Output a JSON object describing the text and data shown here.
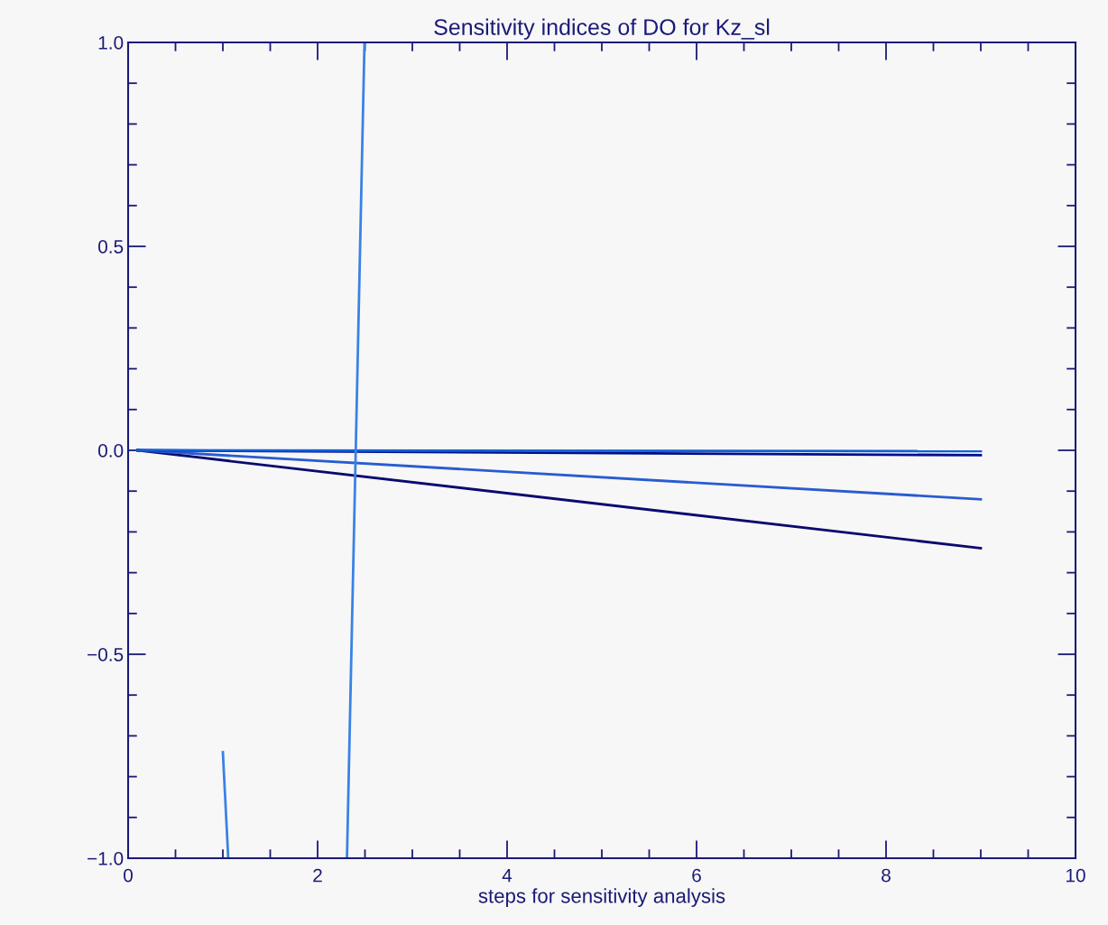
{
  "chart_data": {
    "type": "line",
    "title": "Sensitivity indices of DO for Kz_sl",
    "xlabel": "steps for sensitivity analysis",
    "xlim": [
      0,
      10
    ],
    "xticks": [
      0,
      2,
      4,
      6,
      8,
      10
    ],
    "ylim": [
      -1.0,
      1.0
    ],
    "yticks": [
      {
        "value": -1.0,
        "label": "−1.0"
      },
      {
        "value": -0.5,
        "label": "−0.5"
      },
      {
        "value": 0.0,
        "label": "0.0"
      },
      {
        "value": 0.5,
        "label": "0.5"
      },
      {
        "value": 1.0,
        "label": "1.0"
      }
    ],
    "grid": false,
    "line_style": "solid",
    "marker": "none",
    "series": [
      {
        "color": "#0a0a70",
        "x": [
          0.1,
          9
        ],
        "values": [
          0.0,
          -0.24
        ]
      },
      {
        "color": "#2a5cd0",
        "x": [
          0.1,
          9
        ],
        "values": [
          0.0,
          -0.12
        ]
      },
      {
        "color": "#000e8a",
        "x": [
          0.1,
          9
        ],
        "values": [
          0.0,
          -0.012
        ]
      },
      {
        "color": "#1060d8",
        "x": [
          0.1,
          9
        ],
        "values": [
          0.0,
          -0.002
        ]
      },
      {
        "color": "#3a82e4",
        "x": [
          1.0,
          1.057
        ],
        "values": [
          -0.74,
          -1.0
        ]
      },
      {
        "color": "#3a82e4",
        "x": [
          2.31,
          2.495
        ],
        "values": [
          -1.0,
          1.0
        ]
      }
    ]
  }
}
